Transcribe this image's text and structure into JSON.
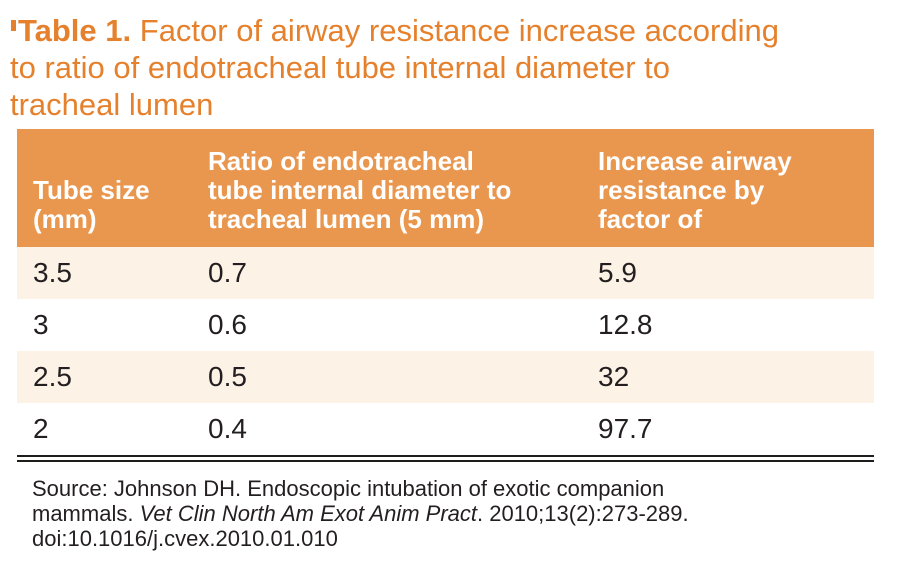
{
  "title": {
    "label": "Table 1.",
    "text": " Factor of airway resistance increase according\nto ratio of endotracheal tube internal diameter to\ntracheal lumen"
  },
  "table": {
    "headers": [
      "Tube size\n(mm)",
      "Ratio of endotracheal\ntube internal diameter to\ntracheal lumen (5 mm)",
      "Increase airway\nresistance by\nfactor of"
    ],
    "rows": [
      [
        "3.5",
        "0.7",
        "5.9"
      ],
      [
        "3",
        "0.6",
        "12.8"
      ],
      [
        "2.5",
        "0.5",
        "32"
      ],
      [
        "2",
        "0.4",
        "97.7"
      ]
    ]
  },
  "source": {
    "prefix": "Source: Johnson DH. Endoscopic intubation of exotic companion\nmammals. ",
    "italic": "Vet Clin North Am Exot Anim Pract",
    "suffix": ". 2010;13(2):273-289.\ndoi:10.1016/j.cvex.2010.01.010"
  },
  "colors": {
    "title_orange": "#E5812D",
    "header_background": "#E9964E",
    "header_text": "#FFFFFF",
    "row_stripe": "#FDF2E6",
    "body_text": "#231F20",
    "rule": "#1D1D1B"
  },
  "chart_data": {
    "type": "table",
    "title": "Table 1. Factor of airway resistance increase according to ratio of endotracheal tube internal diameter to tracheal lumen",
    "columns": [
      "Tube size (mm)",
      "Ratio of endotracheal tube internal diameter to tracheal lumen (5 mm)",
      "Increase airway resistance by factor of"
    ],
    "rows": [
      [
        3.5,
        0.7,
        5.9
      ],
      [
        3,
        0.6,
        12.8
      ],
      [
        2.5,
        0.5,
        32
      ],
      [
        2,
        0.4,
        97.7
      ]
    ],
    "source": "Source: Johnson DH. Endoscopic intubation of exotic companion mammals. Vet Clin North Am Exot Anim Pract. 2010;13(2):273-289. doi:10.1016/j.cvex.2010.01.010"
  }
}
